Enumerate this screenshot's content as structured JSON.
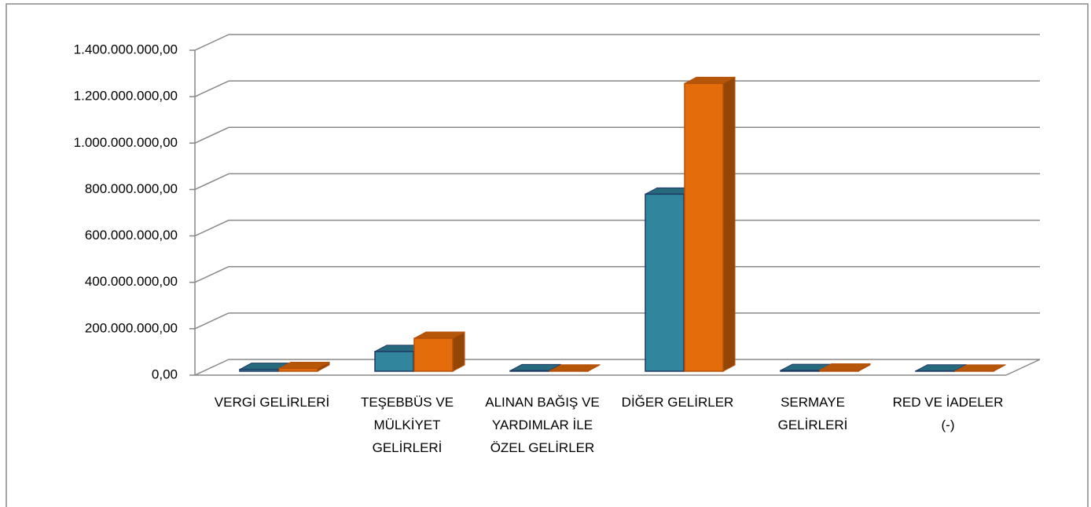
{
  "chart_data": {
    "type": "bar3d",
    "categories": [
      "VERGİ GELİRLERİ",
      "TEŞEBBÜS VE MÜLKİYET GELİRLERİ",
      "ALINAN BAĞIŞ VE YARDIMLAR İLE ÖZEL GELİRLER",
      "DİĞER GELİRLER",
      "SERMAYE GELİRLERİ",
      "RED VE İADELER (-)"
    ],
    "series": [
      {
        "color": "#31859c",
        "values": [
          8000000,
          85000000,
          2000000,
          763000000,
          3000000,
          1000000
        ]
      },
      {
        "color": "#e46c0a",
        "values": [
          12000000,
          142000000,
          1000000,
          1240000000,
          5000000,
          500000
        ]
      }
    ],
    "ylim": [
      0,
      1400000000
    ],
    "yticks": [
      {
        "value": 0,
        "label": "0,00"
      },
      {
        "value": 200000000,
        "label": "200.000.000,00"
      },
      {
        "value": 400000000,
        "label": "400.000.000,00"
      },
      {
        "value": 600000000,
        "label": "600.000.000,00"
      },
      {
        "value": 800000000,
        "label": "800.000.000,00"
      },
      {
        "value": 1000000000,
        "label": "1.000.000.000,00"
      },
      {
        "value": 1200000000,
        "label": "1.200.000.000,00"
      },
      {
        "value": 1400000000,
        "label": "1.400.000.000,00"
      }
    ],
    "grid": true
  }
}
